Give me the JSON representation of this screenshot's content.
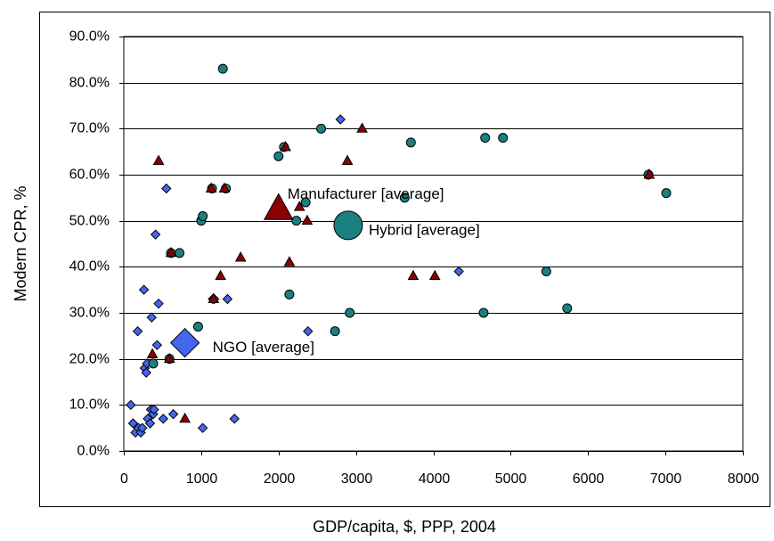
{
  "chart_data": {
    "type": "scatter",
    "xlabel": "GDP/capita, $, PPP, 2004",
    "ylabel": "Modern CPR, %",
    "xlim": [
      0,
      8000
    ],
    "ylim": [
      0,
      90
    ],
    "xticks": [
      "0",
      "1000",
      "2000",
      "3000",
      "4000",
      "5000",
      "6000",
      "7000",
      "8000"
    ],
    "yticks": [
      "0.0%",
      "10.0%",
      "20.0%",
      "30.0%",
      "40.0%",
      "50.0%",
      "60.0%",
      "70.0%",
      "80.0%",
      "90.0%"
    ],
    "grid": true,
    "series": [
      {
        "marker": "diamond",
        "color": "#4466ee",
        "points": [
          [
            90,
            10
          ],
          [
            120,
            6
          ],
          [
            150,
            4
          ],
          [
            180,
            26
          ],
          [
            190,
            5
          ],
          [
            220,
            4
          ],
          [
            240,
            5
          ],
          [
            260,
            35
          ],
          [
            270,
            18
          ],
          [
            290,
            17
          ],
          [
            300,
            19
          ],
          [
            310,
            7
          ],
          [
            340,
            6
          ],
          [
            350,
            9
          ],
          [
            360,
            29
          ],
          [
            380,
            8
          ],
          [
            390,
            9
          ],
          [
            410,
            47
          ],
          [
            430,
            23
          ],
          [
            450,
            32
          ],
          [
            510,
            7
          ],
          [
            550,
            57
          ],
          [
            640,
            8
          ],
          [
            1020,
            5
          ],
          [
            1150,
            33
          ],
          [
            1170,
            33
          ],
          [
            1340,
            33
          ],
          [
            1430,
            7
          ],
          [
            2380,
            26
          ],
          [
            2800,
            72
          ],
          [
            4330,
            39
          ]
        ]
      },
      {
        "marker": "circle",
        "color": "#1a8080",
        "points": [
          [
            380,
            19
          ],
          [
            590,
            20
          ],
          [
            610,
            43
          ],
          [
            720,
            43
          ],
          [
            960,
            27
          ],
          [
            1000,
            50
          ],
          [
            1020,
            51
          ],
          [
            1140,
            57
          ],
          [
            1280,
            83
          ],
          [
            1320,
            57
          ],
          [
            2000,
            64
          ],
          [
            2070,
            66
          ],
          [
            2140,
            34
          ],
          [
            2230,
            50
          ],
          [
            2350,
            54
          ],
          [
            2550,
            70
          ],
          [
            2730,
            26
          ],
          [
            2920,
            30
          ],
          [
            3630,
            55
          ],
          [
            3710,
            67
          ],
          [
            4650,
            30
          ],
          [
            4670,
            68
          ],
          [
            4900,
            68
          ],
          [
            5460,
            39
          ],
          [
            5730,
            31
          ],
          [
            6780,
            60
          ],
          [
            7010,
            56
          ]
        ]
      },
      {
        "marker": "triangle",
        "color": "#8b0000",
        "points": [
          [
            370,
            21
          ],
          [
            450,
            63
          ],
          [
            590,
            20
          ],
          [
            610,
            43
          ],
          [
            790,
            7
          ],
          [
            1130,
            57
          ],
          [
            1160,
            33
          ],
          [
            1250,
            38
          ],
          [
            1300,
            57
          ],
          [
            1510,
            42
          ],
          [
            2090,
            66
          ],
          [
            2140,
            41
          ],
          [
            2270,
            53
          ],
          [
            2370,
            50
          ],
          [
            2890,
            63
          ],
          [
            3080,
            70
          ],
          [
            3740,
            38
          ],
          [
            4020,
            38
          ],
          [
            6790,
            60
          ]
        ]
      }
    ],
    "averages": [
      {
        "label": "NGO [average]",
        "marker": "diamond",
        "x": 790,
        "y": 23.5,
        "color": "#4466ee"
      },
      {
        "label": "Manufacturer [average]",
        "marker": "triangle",
        "x": 2000,
        "y": 52.5,
        "color": "#8b0000"
      },
      {
        "label": "Hybrid [average]",
        "marker": "circle",
        "x": 2900,
        "y": 49,
        "color": "#1a8080"
      }
    ]
  }
}
